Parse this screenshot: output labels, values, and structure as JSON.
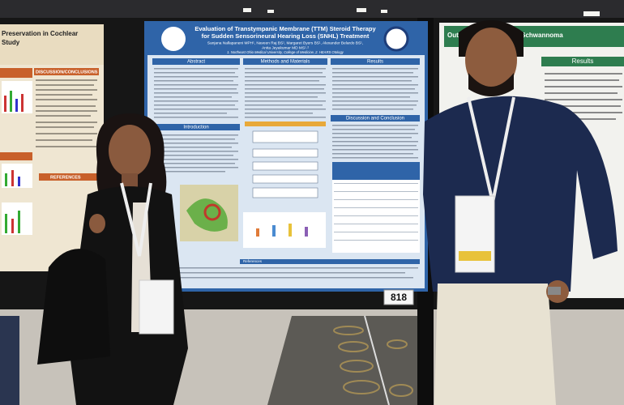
{
  "center_poster": {
    "title_lines": [
      "Evaluation of Transtympanic Membrane (TTM) Steroid Therapy",
      "for Sudden Sensorineural Hearing Loss (SNHL) Treatment"
    ],
    "authors_lines": [
      "Sanjana Nallapaneni MPH¹, Naveen Raj BS¹, Margaret Byers BS¹, Alexander Belardo BS¹,",
      "Anita Jeyakumar MD MS¹˒²"
    ],
    "affiliation": "1. Northeast Ohio Medical University, College of Medicine, 2. HEARS Otology",
    "sections": [
      "Abstract",
      "Methods and Materials",
      "Results",
      "Introduction",
      "Discussion and Conclusion",
      "References"
    ],
    "board_number": "818"
  },
  "left_poster": {
    "title_lines": [
      "Preservation in Cochlear",
      "Study"
    ],
    "sections": [
      "DISCUSSION/CONCLUSIONS",
      "REFERENCES"
    ]
  },
  "right_poster": {
    "title": "Outcomes in Vestibular Schwannoma",
    "sections": [
      "Results"
    ]
  }
}
